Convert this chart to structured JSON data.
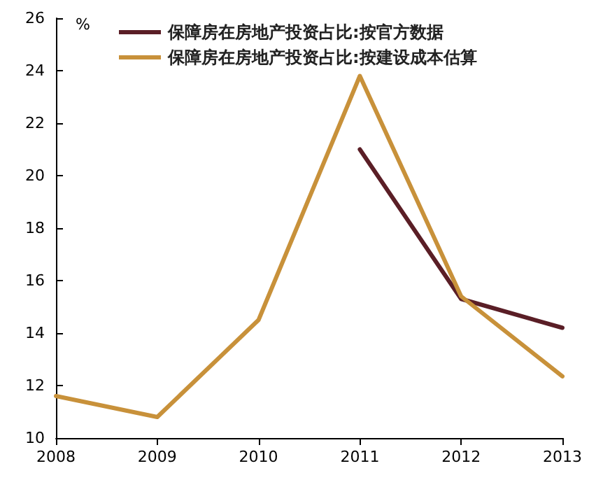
{
  "chart_data": {
    "type": "line",
    "ylabel": "%",
    "categories": [
      "2008",
      "2009",
      "2010",
      "2011",
      "2012",
      "2013"
    ],
    "series": [
      {
        "name": "保障房在房地产投资占比:按官方数据",
        "color": "#5a1e26",
        "values": [
          null,
          null,
          null,
          21.0,
          15.3,
          14.2
        ]
      },
      {
        "name": "保障房在房地产投资占比:按建设成本估算",
        "color": "#c8913a",
        "values": [
          11.6,
          10.8,
          14.5,
          23.8,
          15.4,
          12.35
        ]
      }
    ],
    "ylim": [
      10,
      26
    ],
    "yticks": [
      10,
      12,
      14,
      16,
      18,
      20,
      22,
      24,
      26
    ],
    "grid": false,
    "legend": "top",
    "marker": "none",
    "line_style": "solid"
  }
}
